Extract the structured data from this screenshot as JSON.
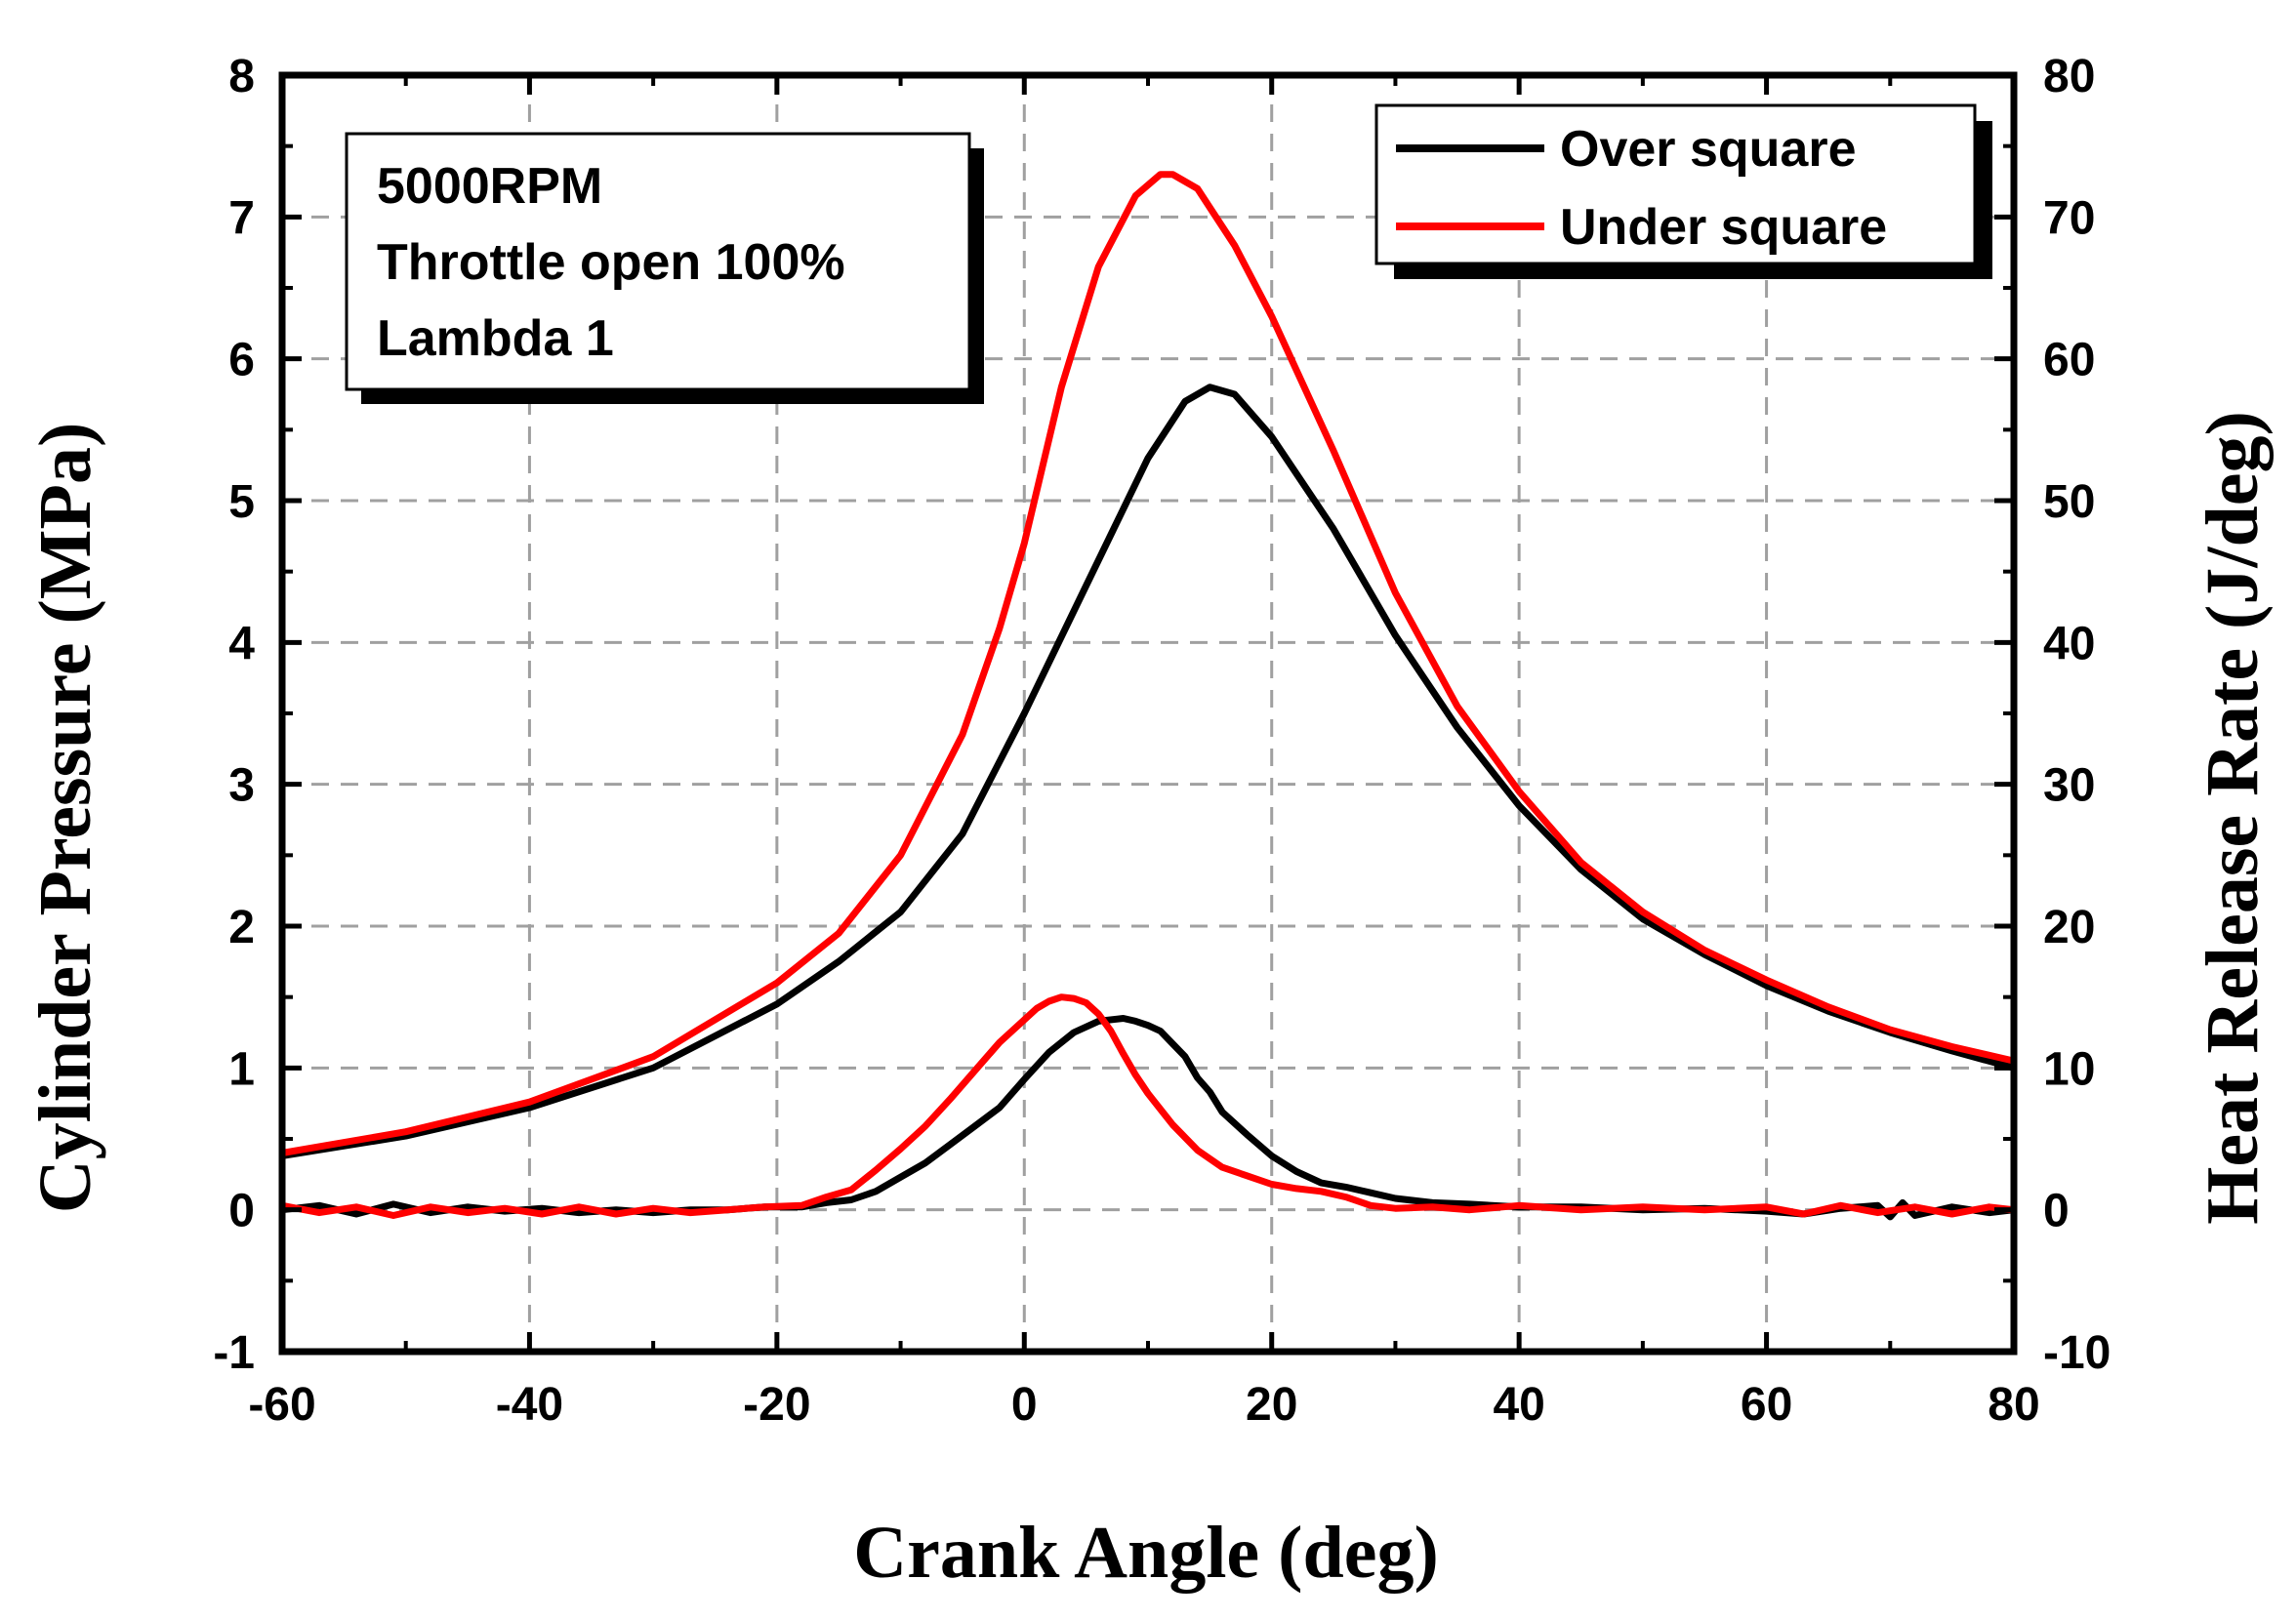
{
  "chart_data": {
    "type": "line",
    "title": "",
    "xlabel": "Crank Angle (deg)",
    "ylabel_left": "Cylinder Pressure (MPa)",
    "ylabel_right": "Heat Release Rate (J/deg)",
    "xlim": [
      -60,
      80
    ],
    "ylim_left": [
      -1,
      8
    ],
    "ylim_right": [
      -10,
      80
    ],
    "x_ticks": [
      "-60",
      "-40",
      "-20",
      "0",
      "20",
      "40",
      "60",
      "80"
    ],
    "y_left_ticks": [
      "-1",
      "0",
      "1",
      "2",
      "3",
      "4",
      "5",
      "6",
      "7",
      "8"
    ],
    "y_right_ticks": [
      "-10",
      "0",
      "10",
      "20",
      "30",
      "40",
      "50",
      "60",
      "70",
      "80"
    ],
    "grid": true,
    "info_box": [
      "5000RPM",
      "Throttle open 100%",
      "Lambda 1"
    ],
    "legend": [
      {
        "label": "Over square",
        "color": "#000000"
      },
      {
        "label": "Under square",
        "color": "#ff0000"
      }
    ],
    "series": [
      {
        "name": "Over square pressure",
        "axis": "left",
        "color": "#000000",
        "x": [
          -60,
          -50,
          -40,
          -30,
          -20,
          -15,
          -10,
          -5,
          0,
          5,
          10,
          13,
          15,
          17,
          20,
          25,
          30,
          35,
          40,
          45,
          50,
          55,
          60,
          65,
          70,
          75,
          80
        ],
        "y": [
          0.38,
          0.52,
          0.72,
          1.0,
          1.45,
          1.75,
          2.1,
          2.65,
          3.5,
          4.4,
          5.3,
          5.7,
          5.8,
          5.75,
          5.45,
          4.8,
          4.05,
          3.4,
          2.85,
          2.4,
          2.05,
          1.8,
          1.58,
          1.4,
          1.25,
          1.12,
          1.0
        ]
      },
      {
        "name": "Under square pressure",
        "axis": "left",
        "color": "#ff0000",
        "x": [
          -60,
          -50,
          -40,
          -30,
          -20,
          -15,
          -10,
          -5,
          -2,
          0,
          3,
          6,
          9,
          11,
          12,
          14,
          17,
          20,
          25,
          30,
          35,
          40,
          45,
          50,
          55,
          60,
          65,
          70,
          75,
          80
        ],
        "y": [
          0.4,
          0.55,
          0.76,
          1.08,
          1.6,
          1.95,
          2.5,
          3.35,
          4.1,
          4.7,
          5.8,
          6.65,
          7.15,
          7.3,
          7.3,
          7.2,
          6.8,
          6.3,
          5.35,
          4.35,
          3.55,
          2.95,
          2.45,
          2.1,
          1.83,
          1.62,
          1.43,
          1.27,
          1.15,
          1.05
        ]
      },
      {
        "name": "Over square heat release rate",
        "axis": "right",
        "color": "#000000",
        "x": [
          -60,
          -57,
          -54,
          -51,
          -48,
          -45,
          -42,
          -39,
          -36,
          -33,
          -30,
          -27,
          -24,
          -21,
          -18,
          -16,
          -14,
          -12,
          -10,
          -8,
          -6,
          -4,
          -2,
          0,
          2,
          4,
          6,
          8,
          9,
          10,
          11,
          12,
          13,
          14,
          15,
          16,
          18,
          20,
          22,
          24,
          26,
          28,
          30,
          33,
          36,
          40,
          45,
          50,
          55,
          60,
          63,
          66,
          69,
          70,
          71,
          72,
          75,
          78,
          80
        ],
        "y": [
          0,
          0.3,
          -0.3,
          0.4,
          -0.2,
          0.2,
          -0.1,
          0.1,
          -0.2,
          0,
          -0.2,
          0,
          0,
          0.2,
          0.2,
          0.5,
          0.7,
          1.3,
          2.3,
          3.3,
          4.6,
          5.9,
          7.2,
          9.2,
          11.1,
          12.5,
          13.3,
          13.5,
          13.3,
          13.0,
          12.6,
          11.7,
          10.8,
          9.3,
          8.3,
          6.9,
          5.3,
          3.8,
          2.7,
          1.9,
          1.6,
          1.2,
          0.8,
          0.5,
          0.4,
          0.2,
          0.2,
          0,
          0.1,
          -0.1,
          -0.3,
          0.1,
          0.3,
          -0.5,
          0.5,
          -0.4,
          0.2,
          -0.2,
          0
        ]
      },
      {
        "name": "Under square heat release rate",
        "axis": "right",
        "color": "#ff0000",
        "x": [
          -60,
          -57,
          -54,
          -51,
          -48,
          -45,
          -42,
          -39,
          -36,
          -33,
          -30,
          -27,
          -24,
          -21,
          -18,
          -16,
          -14,
          -12,
          -10,
          -8,
          -6,
          -4,
          -2,
          0,
          1,
          2,
          3,
          4,
          5,
          6,
          7,
          8,
          9,
          10,
          12,
          14,
          16,
          18,
          20,
          22,
          24,
          26,
          28,
          30,
          33,
          36,
          40,
          45,
          50,
          55,
          60,
          63,
          66,
          69,
          72,
          75,
          78,
          80
        ],
        "y": [
          0.3,
          -0.2,
          0.2,
          -0.4,
          0.2,
          -0.2,
          0.1,
          -0.3,
          0.2,
          -0.3,
          0.1,
          -0.2,
          0,
          0.2,
          0.3,
          0.9,
          1.4,
          2.8,
          4.3,
          5.9,
          7.8,
          9.8,
          11.8,
          13.4,
          14.2,
          14.7,
          15.0,
          14.9,
          14.6,
          13.8,
          12.6,
          11.0,
          9.5,
          8.2,
          6.0,
          4.2,
          3.0,
          2.4,
          1.8,
          1.5,
          1.3,
          0.9,
          0.3,
          0.1,
          0.2,
          0,
          0.3,
          0,
          0.2,
          0,
          0.2,
          -0.3,
          0.3,
          -0.2,
          0.2,
          -0.3,
          0.2,
          0
        ]
      }
    ]
  }
}
